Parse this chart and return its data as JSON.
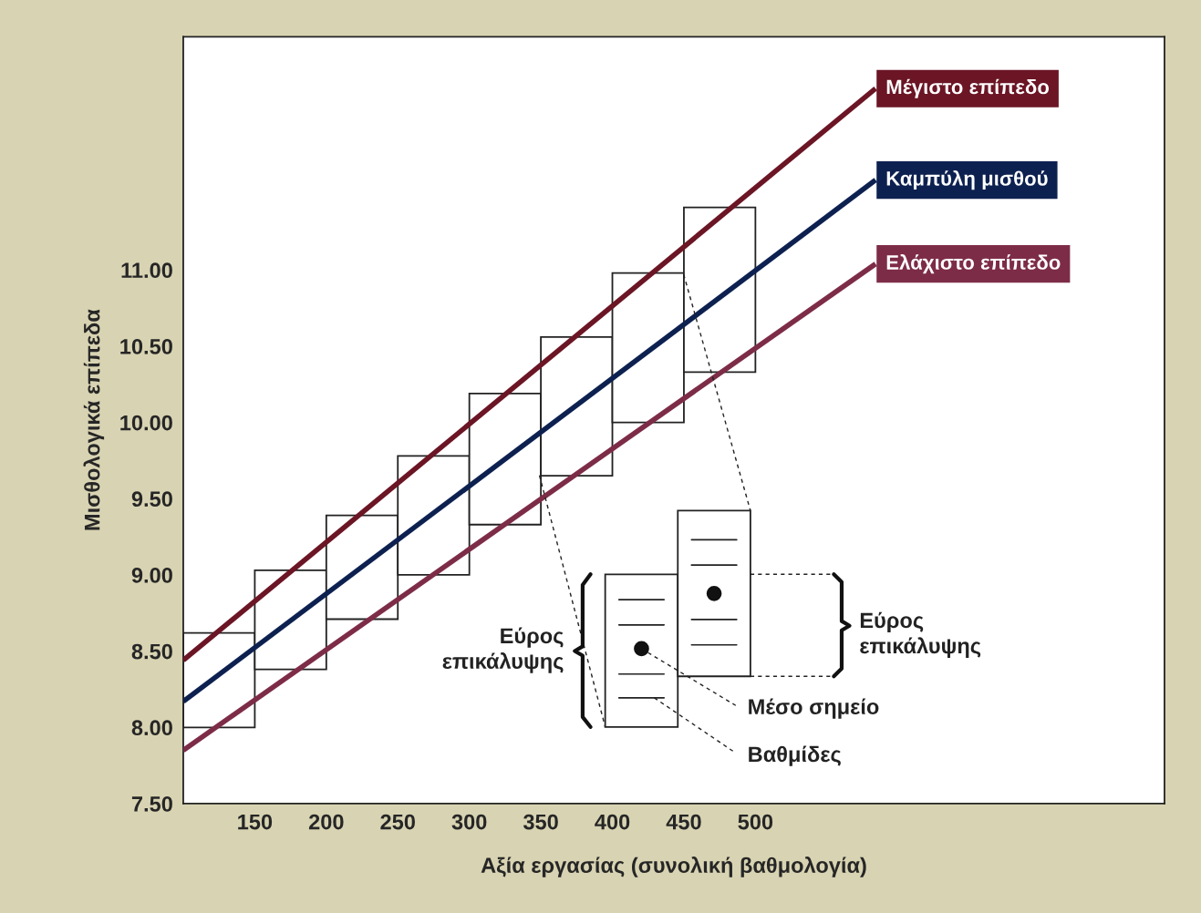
{
  "chart_data": {
    "type": "line",
    "xlabel": "Αξία εργασίας (συνολική βαθμολογία)",
    "ylabel": "Μισθολογικά επίπεδα",
    "xlim": [
      100,
      786
    ],
    "ylim": [
      7.5,
      12.53
    ],
    "xticks": [
      150,
      200,
      250,
      300,
      350,
      400,
      450,
      500
    ],
    "yticks": [
      {
        "value": 7.5,
        "label": "7.50"
      },
      {
        "value": 8.0,
        "label": "8.00"
      },
      {
        "value": 8.5,
        "label": "8.50"
      },
      {
        "value": 9.0,
        "label": "9.00"
      },
      {
        "value": 9.5,
        "label": "9.50"
      },
      {
        "value": 10.0,
        "label": "10.00"
      },
      {
        "value": 10.5,
        "label": "10.50"
      },
      {
        "value": 11.0,
        "label": "11.00"
      }
    ],
    "grid": false,
    "legend": false,
    "series": [
      {
        "type": "bar",
        "color": "#ffffff",
        "x": [
          125,
          175,
          225,
          275,
          325,
          375,
          425,
          475
        ],
        "base": [
          8.0,
          8.38,
          8.71,
          9.0,
          9.33,
          9.65,
          10.0,
          10.33
        ],
        "values": [
          0.62,
          0.65,
          0.68,
          0.78,
          0.86,
          0.91,
          0.98,
          1.08
        ]
      },
      {
        "name": "Μέγιστο επίπεδο",
        "color": "#6b1525",
        "x": [
          100,
          584
        ],
        "values": [
          8.44,
          12.19
        ]
      },
      {
        "name": "Καμπύλη μισθού",
        "color": "#0d2150",
        "x": [
          100,
          584
        ],
        "values": [
          8.17,
          11.59
        ]
      },
      {
        "name": "Ελάχιστο επίπεδο",
        "color": "#7d2c48",
        "x": [
          100,
          584
        ],
        "values": [
          7.85,
          11.04
        ]
      }
    ],
    "annotations": [
      "Εύρος\nεπικάλυψης",
      "Εύρος\nεπικάλυψης",
      "Μέσο σημείο",
      "Βαθμίδες"
    ]
  }
}
